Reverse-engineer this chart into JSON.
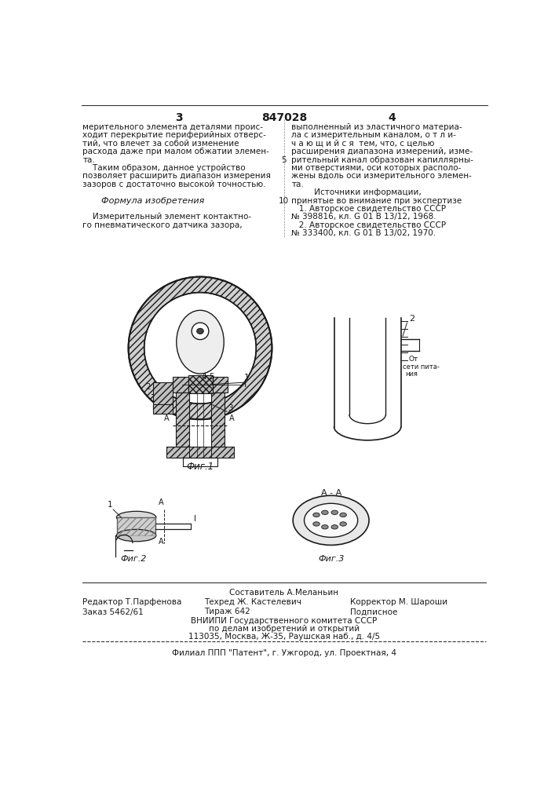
{
  "bg_color": "#f5f5f0",
  "page_color": "#ffffff",
  "text_color": "#1a1a1a",
  "header_number": "847028",
  "page_left": "3",
  "page_right": "4",
  "left_col_text": [
    "мерительного элемента деталями проис-",
    "ходит перекрытие периферийных отверс-",
    "тий, что влечет за собой изменение",
    "расхода даже при малом обжатии элемен-",
    "та.",
    "    Таким образом, данное устройство",
    "позволяет расширить диапазон измерения",
    "зазоров с достаточно высокой точностью.",
    "",
    "         Формула изобретения",
    "",
    "    Измерительный элемент контактно-",
    "го пневматического датчика зазора,"
  ],
  "right_col_text": [
    "выполненный из эластичного материа-",
    "ла с измерительным каналом, о т л и-",
    "ч а ю щ и й с я  тем, что, с целью",
    "расширения диапазона измерений, изме-",
    "рительный канал образован капиллярны-",
    "ми отверстиями, оси которых располо-",
    "жены вдоль оси измерительного элемен-",
    "та.",
    "         Источники информации,",
    "принятые во внимание при экспертизе",
    "   1. Авторское свидетельство СССР",
    "№ 398816, кл. G 01 B 13/12, 1968.",
    "   2. Авторское свидетельство СССР",
    "№ 333400, кл. G 01 B 13/02, 1970."
  ],
  "fig1_label": "Фиг.1",
  "fig2_label": "Фиг.2",
  "fig3_label": "Фиг.3",
  "fig3_section": "А - А",
  "footer_composer": "Составитель А.Меланьин",
  "footer_editor": "Редактор Т.Парфенова",
  "footer_tech": "Техред Ж. Кастелевич",
  "footer_corrector": "Корректор М. Шароши",
  "footer_order": "Заказ 5462/61",
  "footer_copies": "Тираж 642",
  "footer_subscription": "Подписное",
  "footer_org1": "ВНИИПИ Государственного комитета СССР",
  "footer_org2": "по делам изобретений и открытий",
  "footer_address": "113035, Москва, Ж-35, Раушская наб., д. 4/5",
  "footer_branch": "Филиал ППП \"Патент\", г. Ужгород, ул. Проектная, 4"
}
